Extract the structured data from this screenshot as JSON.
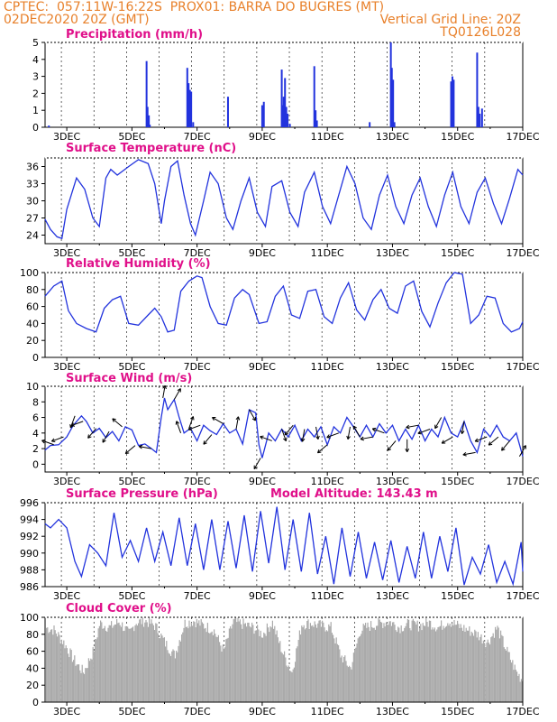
{
  "header": {
    "line1_left": "CPTEC:",
    "coords": "057:11W-16:22S",
    "station": "PROX01: BARRA DO BUGRES (MT)",
    "run_time": "02DEC2020 20Z (GMT)",
    "grid_line": "Vertical Grid Line: 20Z",
    "product_code": "TQ0126L028"
  },
  "colors": {
    "header": "#e8802a",
    "title": "#e0108a",
    "series": "#2233dd",
    "cloud": "#aaaaaa",
    "wind_arrow": "#000000"
  },
  "model_altitude_label": "Model Altitude: 143.43 m",
  "date_axis": [
    "3DEC",
    "5DEC",
    "7DEC",
    "9DEC",
    "11DEC",
    "13DEC",
    "15DEC",
    "17DEC"
  ],
  "chart_data": [
    {
      "id": "precip",
      "type": "bar",
      "title": "Precipitation (mm/h)",
      "x_unit": "day of December 2020 (fractional)",
      "xlim": [
        2.333,
        17.0
      ],
      "ylim": [
        0,
        5
      ],
      "yticks": [
        0,
        1,
        2,
        3,
        4,
        5
      ],
      "x": [
        2.45,
        5.45,
        5.48,
        5.52,
        5.55,
        6.7,
        6.74,
        6.78,
        6.82,
        6.88,
        7.95,
        9.0,
        9.05,
        9.6,
        9.63,
        9.66,
        9.7,
        9.74,
        9.78,
        9.85,
        10.6,
        10.64,
        10.68,
        12.3,
        12.95,
        12.98,
        13.02,
        13.06,
        14.8,
        14.84,
        14.88,
        15.6,
        15.64,
        15.68,
        15.75
      ],
      "values": [
        0.1,
        3.9,
        1.2,
        0.7,
        0.15,
        3.5,
        2.6,
        2.2,
        2.1,
        0.3,
        1.8,
        1.3,
        1.5,
        3.4,
        1.3,
        1.8,
        2.9,
        1.2,
        0.8,
        0.2,
        3.6,
        1.0,
        0.4,
        0.3,
        5.0,
        3.5,
        2.8,
        0.3,
        2.7,
        3.0,
        2.8,
        4.4,
        1.2,
        0.8,
        1.1
      ]
    },
    {
      "id": "temp",
      "type": "line",
      "title": "Surface Temperature (nC)",
      "ylim": [
        22.5,
        37.5
      ],
      "yticks": [
        24,
        27,
        30,
        33,
        36
      ],
      "x": [
        2.33,
        2.5,
        2.7,
        2.85,
        3.0,
        3.3,
        3.55,
        3.8,
        4.0,
        4.2,
        4.35,
        4.55,
        4.9,
        5.2,
        5.5,
        5.7,
        5.9,
        6.0,
        6.2,
        6.4,
        6.6,
        6.8,
        6.95,
        7.2,
        7.4,
        7.65,
        7.9,
        8.1,
        8.35,
        8.6,
        8.85,
        9.1,
        9.3,
        9.6,
        9.85,
        10.1,
        10.3,
        10.6,
        10.85,
        11.1,
        11.3,
        11.6,
        11.85,
        12.1,
        12.35,
        12.6,
        12.85,
        13.1,
        13.35,
        13.6,
        13.85,
        14.1,
        14.35,
        14.6,
        14.85,
        15.1,
        15.35,
        15.6,
        15.85,
        16.1,
        16.35,
        16.6,
        16.85,
        17.0
      ],
      "values": [
        26.8,
        25.0,
        23.7,
        23.4,
        28.5,
        34.0,
        32.0,
        27.0,
        25.5,
        34.0,
        35.5,
        34.5,
        36.0,
        37.2,
        36.5,
        33.0,
        26.0,
        30.0,
        36.0,
        37.0,
        31.0,
        26.0,
        24.0,
        30.0,
        35.0,
        33.0,
        27.0,
        25.0,
        30.0,
        34.0,
        28.0,
        25.5,
        32.5,
        33.5,
        28.0,
        25.5,
        31.5,
        35.0,
        29.0,
        26.0,
        30.0,
        36.0,
        33.0,
        27.0,
        25.0,
        31.0,
        34.5,
        29.0,
        26.0,
        31.0,
        34.0,
        29.0,
        25.5,
        31.0,
        35.0,
        29.0,
        26.0,
        31.5,
        34.0,
        29.5,
        26.0,
        30.5,
        35.5,
        34.5
      ]
    },
    {
      "id": "rh",
      "type": "line",
      "title": "Relative Humidity (%)",
      "ylim": [
        0,
        100
      ],
      "yticks": [
        0,
        20,
        40,
        60,
        80,
        100
      ],
      "x": [
        2.33,
        2.6,
        2.85,
        3.05,
        3.3,
        3.6,
        3.9,
        4.15,
        4.4,
        4.65,
        4.9,
        5.2,
        5.5,
        5.7,
        5.9,
        6.1,
        6.3,
        6.5,
        6.75,
        7.0,
        7.15,
        7.4,
        7.65,
        7.9,
        8.15,
        8.4,
        8.6,
        8.9,
        9.15,
        9.4,
        9.65,
        9.9,
        10.15,
        10.4,
        10.65,
        10.9,
        11.15,
        11.4,
        11.65,
        11.9,
        12.15,
        12.4,
        12.65,
        12.9,
        13.15,
        13.4,
        13.65,
        13.9,
        14.15,
        14.4,
        14.65,
        14.9,
        15.15,
        15.4,
        15.65,
        15.9,
        16.15,
        16.4,
        16.65,
        16.9,
        17.0
      ],
      "values": [
        72,
        84,
        90,
        55,
        40,
        34,
        30,
        58,
        68,
        72,
        40,
        38,
        50,
        58,
        48,
        30,
        32,
        78,
        90,
        96,
        94,
        60,
        40,
        38,
        70,
        80,
        74,
        40,
        42,
        72,
        84,
        50,
        46,
        78,
        80,
        48,
        40,
        70,
        88,
        56,
        44,
        68,
        80,
        58,
        52,
        84,
        90,
        54,
        36,
        64,
        88,
        100,
        98,
        40,
        50,
        72,
        70,
        40,
        30,
        34,
        42
      ]
    },
    {
      "id": "wind",
      "type": "line",
      "title": "Surface Wind (m/s)",
      "ylim": [
        -1,
        10
      ],
      "yticks": [
        0,
        2,
        4,
        6,
        8,
        10
      ],
      "x": [
        2.33,
        2.5,
        2.75,
        3.0,
        3.2,
        3.45,
        3.6,
        3.8,
        4.0,
        4.2,
        4.4,
        4.6,
        4.8,
        5.0,
        5.2,
        5.4,
        5.6,
        5.75,
        5.9,
        6.0,
        6.1,
        6.3,
        6.45,
        6.6,
        6.8,
        7.0,
        7.2,
        7.4,
        7.6,
        7.8,
        8.0,
        8.2,
        8.4,
        8.6,
        8.8,
        8.9,
        9.0,
        9.2,
        9.4,
        9.6,
        9.8,
        10.0,
        10.2,
        10.4,
        10.6,
        10.8,
        11.0,
        11.2,
        11.4,
        11.6,
        11.8,
        12.0,
        12.2,
        12.4,
        12.6,
        12.8,
        13.0,
        13.2,
        13.4,
        13.6,
        13.8,
        14.0,
        14.2,
        14.4,
        14.6,
        14.8,
        15.0,
        15.2,
        15.4,
        15.6,
        15.8,
        16.0,
        16.2,
        16.4,
        16.6,
        16.8,
        17.0
      ],
      "values": [
        1.8,
        2.4,
        2.5,
        3.5,
        5.0,
        6.2,
        5.5,
        4.0,
        4.6,
        3.4,
        4.2,
        3.0,
        4.8,
        4.4,
        2.4,
        2.6,
        2.0,
        1.5,
        6.0,
        8.5,
        7.0,
        8.3,
        6.0,
        4.0,
        4.6,
        3.0,
        5.0,
        4.3,
        3.8,
        5.2,
        4.0,
        4.5,
        2.6,
        7.0,
        6.6,
        2.5,
        0.8,
        4.0,
        3.0,
        4.5,
        3.5,
        5.0,
        3.0,
        4.5,
        3.5,
        4.8,
        2.5,
        4.8,
        4.0,
        6.0,
        4.8,
        3.5,
        5.0,
        3.5,
        5.2,
        4.0,
        5.0,
        3.0,
        4.5,
        3.2,
        5.0,
        3.0,
        4.5,
        3.5,
        6.0,
        4.0,
        3.5,
        5.5,
        3.0,
        1.5,
        4.5,
        3.5,
        5.0,
        3.5,
        3.0,
        4.0,
        1.0
      ],
      "arrows_x": [
        2.6,
        2.9,
        3.25,
        3.5,
        3.9,
        4.3,
        4.7,
        5.1,
        5.6,
        5.95,
        6.3,
        6.5,
        6.75,
        7.1,
        7.45,
        7.8,
        8.2,
        8.6,
        8.95,
        9.3,
        9.6,
        9.95,
        10.3,
        10.65,
        11.0,
        11.35,
        11.7,
        12.0,
        12.4,
        12.75,
        13.1,
        13.45,
        13.8,
        14.15,
        14.5,
        14.85,
        15.2,
        15.55,
        15.9,
        16.25,
        16.6,
        16.9
      ],
      "arrows_angle_deg": [
        160,
        200,
        250,
        200,
        230,
        240,
        140,
        220,
        170,
        80,
        60,
        110,
        70,
        200,
        230,
        150,
        80,
        300,
        240,
        160,
        290,
        230,
        260,
        280,
        220,
        200,
        260,
        120,
        190,
        160,
        230,
        270,
        190,
        200,
        240,
        210,
        260,
        190,
        200,
        220,
        230,
        60
      ]
    },
    {
      "id": "pressure",
      "type": "line",
      "title": "Surface Pressure (hPa)",
      "ylim": [
        986,
        996
      ],
      "yticks": [
        986,
        988,
        990,
        992,
        994,
        996
      ],
      "x": [
        2.33,
        2.5,
        2.75,
        3.0,
        3.25,
        3.45,
        3.7,
        3.95,
        4.2,
        4.45,
        4.7,
        4.95,
        5.2,
        5.45,
        5.7,
        5.95,
        6.2,
        6.45,
        6.7,
        6.95,
        7.2,
        7.45,
        7.7,
        7.95,
        8.2,
        8.45,
        8.7,
        8.95,
        9.2,
        9.45,
        9.7,
        9.95,
        10.2,
        10.45,
        10.7,
        10.95,
        11.2,
        11.45,
        11.7,
        11.95,
        12.2,
        12.45,
        12.7,
        12.95,
        13.2,
        13.45,
        13.7,
        13.95,
        14.2,
        14.45,
        14.7,
        14.95,
        15.2,
        15.45,
        15.7,
        15.95,
        16.2,
        16.45,
        16.7,
        16.95,
        17.0
      ],
      "values": [
        993.5,
        993.0,
        994.0,
        993.0,
        989.0,
        987.2,
        991.0,
        990.0,
        988.5,
        994.8,
        989.5,
        991.5,
        989.0,
        993.0,
        989.0,
        992.5,
        988.5,
        994.2,
        988.5,
        993.5,
        988.0,
        994.0,
        988.0,
        993.8,
        988.2,
        994.5,
        987.8,
        995.0,
        988.8,
        995.5,
        988.0,
        994.0,
        987.8,
        994.8,
        987.5,
        992.0,
        986.3,
        993.0,
        987.2,
        992.5,
        987.0,
        991.3,
        986.8,
        991.5,
        986.5,
        990.8,
        987.0,
        992.5,
        987.0,
        992.0,
        987.8,
        993.0,
        986.2,
        989.5,
        987.5,
        991.0,
        986.5,
        989.0,
        986.3,
        991.3,
        987.8
      ]
    },
    {
      "id": "cloud",
      "type": "area",
      "title": "Cloud Cover (%)",
      "ylim": [
        0,
        100
      ],
      "yticks": [
        0,
        20,
        40,
        60,
        80,
        100
      ],
      "x": [
        2.33,
        2.6,
        2.9,
        3.2,
        3.5,
        3.8,
        4.0,
        4.3,
        4.6,
        4.9,
        5.1,
        5.4,
        5.7,
        6.0,
        6.3,
        6.6,
        6.9,
        7.2,
        7.5,
        7.8,
        8.1,
        8.4,
        8.7,
        9.0,
        9.3,
        9.6,
        9.9,
        10.2,
        10.5,
        10.8,
        11.1,
        11.4,
        11.7,
        12.0,
        12.3,
        12.6,
        12.9,
        13.2,
        13.5,
        13.8,
        14.1,
        14.4,
        14.7,
        15.0,
        15.3,
        15.6,
        15.9,
        16.2,
        16.5,
        16.8,
        17.0
      ],
      "values": [
        88,
        85,
        70,
        50,
        35,
        60,
        93,
        88,
        95,
        80,
        94,
        96,
        90,
        70,
        55,
        93,
        96,
        90,
        85,
        60,
        95,
        92,
        88,
        80,
        94,
        60,
        35,
        92,
        93,
        90,
        88,
        55,
        40,
        85,
        90,
        93,
        95,
        88,
        92,
        90,
        94,
        88,
        96,
        90,
        85,
        80,
        70,
        88,
        60,
        35,
        25
      ]
    }
  ]
}
